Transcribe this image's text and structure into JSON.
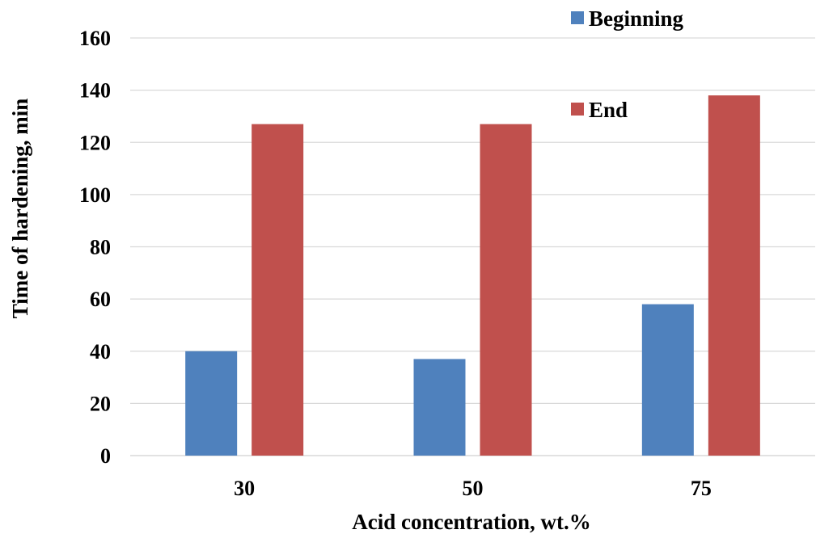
{
  "chart_data": {
    "type": "bar",
    "categories": [
      "30",
      "50",
      "75"
    ],
    "series": [
      {
        "name": "Beginning",
        "values": [
          40,
          37,
          58
        ],
        "color": "#4f81bd"
      },
      {
        "name": "End",
        "values": [
          127,
          127,
          138
        ],
        "color": "#c0504d"
      }
    ],
    "xlabel": "Acid concentration, wt.%",
    "ylabel": "Time of hardening, min",
    "ylim": [
      0,
      160
    ],
    "yticks": [
      0,
      20,
      40,
      60,
      80,
      100,
      120,
      140,
      160
    ],
    "grid": true,
    "legend_position": "top-right"
  }
}
